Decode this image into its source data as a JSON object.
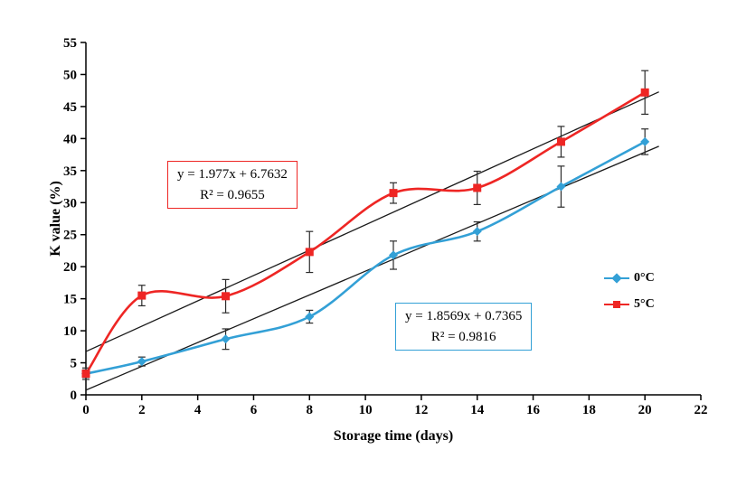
{
  "chart_data": {
    "type": "line",
    "title": "",
    "xlabel": "Storage time (days)",
    "ylabel": "K value (%)",
    "xlim": [
      0,
      22
    ],
    "ylim": [
      0,
      55
    ],
    "xticks": [
      0,
      2,
      4,
      6,
      8,
      10,
      12,
      14,
      16,
      18,
      20,
      22
    ],
    "yticks": [
      0,
      5,
      10,
      15,
      20,
      25,
      30,
      35,
      40,
      45,
      50,
      55
    ],
    "grid": false,
    "legend_position": "right",
    "x": [
      0,
      2,
      5,
      8,
      11,
      14,
      17,
      20
    ],
    "series": [
      {
        "name": "0°C",
        "color": "#33A0D6",
        "marker": "diamond",
        "values": [
          3.3,
          5.2,
          8.7,
          12.2,
          21.8,
          25.5,
          32.5,
          39.5
        ],
        "error": [
          0.9,
          0.7,
          1.6,
          1.0,
          2.2,
          1.5,
          3.2,
          2.0
        ],
        "trendline": {
          "slope": 1.8569,
          "intercept": 0.7365,
          "r_squared": 0.9816,
          "x_range": [
            0,
            20.5
          ],
          "color": "#1a1a1a"
        }
      },
      {
        "name": "5°C",
        "color": "#EE2624",
        "marker": "square",
        "values": [
          3.3,
          15.5,
          15.4,
          22.3,
          31.5,
          32.3,
          39.5,
          47.2
        ],
        "error": [
          0.6,
          1.6,
          2.6,
          3.2,
          1.6,
          2.6,
          2.4,
          3.4
        ],
        "trendline": {
          "slope": 1.977,
          "intercept": 6.7632,
          "r_squared": 0.9655,
          "x_range": [
            0,
            20.5
          ],
          "color": "#1a1a1a"
        }
      }
    ],
    "annotations": [
      {
        "line1": "y = 1.977x + 6.7632",
        "line2": "R² = 0.9655",
        "series": "5°C"
      },
      {
        "line1": "y = 1.8569x + 0.7365",
        "line2": "R² = 0.9816",
        "series": "0°C"
      }
    ]
  }
}
